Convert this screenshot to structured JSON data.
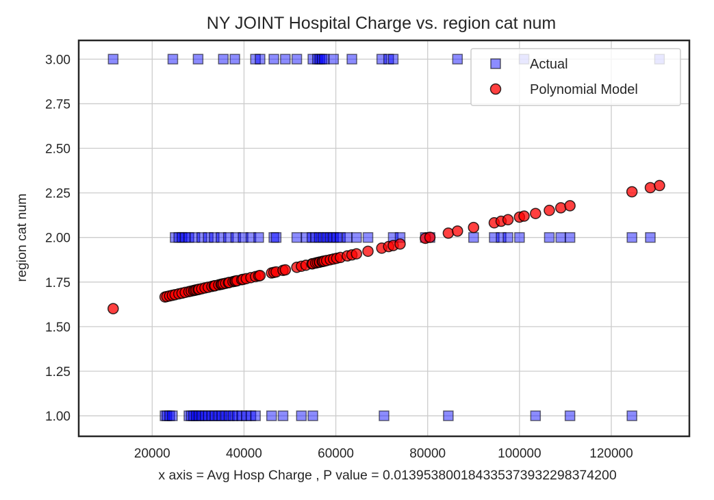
{
  "chart_data": {
    "type": "scatter",
    "title": "NY JOINT Hospital Charge vs. region cat num",
    "xlabel": "x axis = Avg Hosp Charge , P value = 0.013953800184335373932298374200",
    "ylabel": "region cat num",
    "xlim": [
      4000,
      137000
    ],
    "ylim": [
      0.885,
      3.105
    ],
    "xticks": [
      20000,
      40000,
      60000,
      80000,
      100000,
      120000
    ],
    "xtick_labels": [
      "20000",
      "40000",
      "60000",
      "80000",
      "100000",
      "120000"
    ],
    "yticks": [
      1.0,
      1.25,
      1.5,
      1.75,
      2.0,
      2.25,
      2.5,
      2.75,
      3.0
    ],
    "ytick_labels": [
      "1.00",
      "1.25",
      "1.50",
      "1.75",
      "2.00",
      "2.25",
      "2.50",
      "2.75",
      "3.00"
    ],
    "grid": true,
    "legend_position": "top-right",
    "model": {
      "a": 1.5341,
      "b": 5.8e-06
    },
    "series": [
      {
        "name": "Actual",
        "marker": "square",
        "color": "#0000ff",
        "edge": "#000000",
        "opacity": 0.45,
        "points": [
          [
            11500,
            3
          ],
          [
            24500,
            3
          ],
          [
            30000,
            3
          ],
          [
            35500,
            3
          ],
          [
            38000,
            3
          ],
          [
            42500,
            3
          ],
          [
            43500,
            3
          ],
          [
            46500,
            3
          ],
          [
            49000,
            3
          ],
          [
            51500,
            3
          ],
          [
            55000,
            3
          ],
          [
            56000,
            3
          ],
          [
            56500,
            3
          ],
          [
            57000,
            3
          ],
          [
            57500,
            3
          ],
          [
            59500,
            3
          ],
          [
            63500,
            3
          ],
          [
            70000,
            3
          ],
          [
            71500,
            3
          ],
          [
            72500,
            3
          ],
          [
            86500,
            3
          ],
          [
            101000,
            3
          ],
          [
            130500,
            3
          ],
          [
            22800,
            1
          ],
          [
            23200,
            1
          ],
          [
            23800,
            1
          ],
          [
            24400,
            1
          ],
          [
            28000,
            1
          ],
          [
            28500,
            1
          ],
          [
            29000,
            1
          ],
          [
            29600,
            1
          ],
          [
            30200,
            1
          ],
          [
            30800,
            1
          ],
          [
            31500,
            1
          ],
          [
            32200,
            1
          ],
          [
            33000,
            1
          ],
          [
            33700,
            1
          ],
          [
            34500,
            1
          ],
          [
            35200,
            1
          ],
          [
            36000,
            1
          ],
          [
            36800,
            1
          ],
          [
            37600,
            1
          ],
          [
            38500,
            1
          ],
          [
            39500,
            1
          ],
          [
            40500,
            1
          ],
          [
            41500,
            1
          ],
          [
            42500,
            1
          ],
          [
            46000,
            1
          ],
          [
            48500,
            1
          ],
          [
            52500,
            1
          ],
          [
            55000,
            1
          ],
          [
            70500,
            1
          ],
          [
            84500,
            1
          ],
          [
            103500,
            1
          ],
          [
            111000,
            1
          ],
          [
            124500,
            1
          ],
          [
            25000,
            2
          ],
          [
            25800,
            2
          ],
          [
            26500,
            2
          ],
          [
            27200,
            2
          ],
          [
            28000,
            2
          ],
          [
            29300,
            2
          ],
          [
            30800,
            2
          ],
          [
            32200,
            2
          ],
          [
            33500,
            2
          ],
          [
            35000,
            2
          ],
          [
            36600,
            2
          ],
          [
            38200,
            2
          ],
          [
            39800,
            2
          ],
          [
            41500,
            2
          ],
          [
            43200,
            2
          ],
          [
            46500,
            2
          ],
          [
            47000,
            2
          ],
          [
            51500,
            2
          ],
          [
            53500,
            2
          ],
          [
            54800,
            2
          ],
          [
            55600,
            2
          ],
          [
            56400,
            2
          ],
          [
            57200,
            2
          ],
          [
            58000,
            2
          ],
          [
            58800,
            2
          ],
          [
            59500,
            2
          ],
          [
            60200,
            2
          ],
          [
            61000,
            2
          ],
          [
            62500,
            2
          ],
          [
            64500,
            2
          ],
          [
            67000,
            2
          ],
          [
            72500,
            2
          ],
          [
            74000,
            2
          ],
          [
            79500,
            2
          ],
          [
            80500,
            2
          ],
          [
            90000,
            2
          ],
          [
            94500,
            2
          ],
          [
            96000,
            2
          ],
          [
            97500,
            2
          ],
          [
            100000,
            2
          ],
          [
            106500,
            2
          ],
          [
            109000,
            2
          ],
          [
            111000,
            2
          ],
          [
            124500,
            2
          ],
          [
            128500,
            2
          ]
        ]
      },
      {
        "name": "Polynomial Model",
        "marker": "circle",
        "color": "#ff0000",
        "edge": "#000000",
        "opacity": 0.75,
        "x": [
          11500,
          22800,
          23200,
          23800,
          24400,
          25000,
          25800,
          26500,
          27200,
          28000,
          28500,
          29000,
          29300,
          29600,
          30000,
          30200,
          30800,
          31500,
          32200,
          33000,
          33500,
          33700,
          34500,
          35000,
          35200,
          35500,
          36000,
          36600,
          36800,
          37600,
          38000,
          38200,
          38500,
          39500,
          39800,
          40500,
          41500,
          42500,
          43200,
          43500,
          46000,
          46500,
          47000,
          48500,
          49000,
          51500,
          52500,
          53500,
          54800,
          55000,
          55600,
          56000,
          56400,
          56500,
          57000,
          57200,
          57500,
          58000,
          58800,
          59500,
          60200,
          61000,
          62500,
          63500,
          64500,
          67000,
          70000,
          71500,
          72500,
          74000,
          79500,
          80500,
          84500,
          86500,
          90000,
          94500,
          96000,
          97500,
          100000,
          101000,
          103500,
          106500,
          109000,
          111000,
          124500,
          128500,
          130500
        ]
      }
    ]
  },
  "legend": {
    "actual": "Actual",
    "model": "Polynomial Model"
  }
}
